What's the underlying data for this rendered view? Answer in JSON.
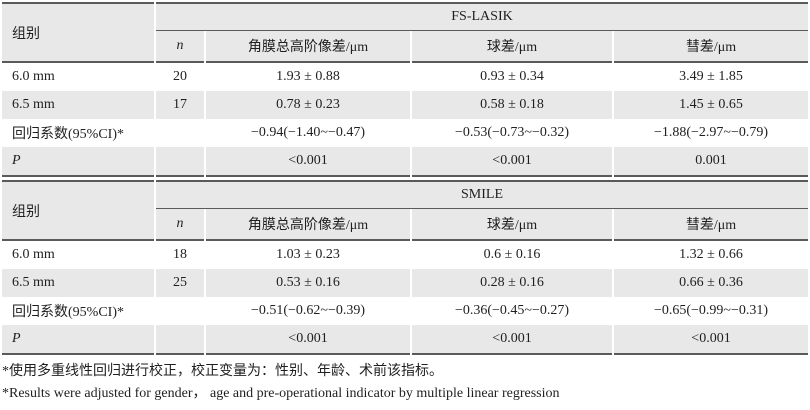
{
  "palette": {
    "stripe_gray": "#e8e8e8",
    "rule_color": "#5a5a5a",
    "text_color": "#1f1f1f",
    "background": "#ffffff"
  },
  "tables": [
    {
      "group_col_header": "组别",
      "span_header": "FS-LASIK",
      "columns": [
        "n",
        "角膜总高阶像差/μm",
        "球差/μm",
        "彗差/μm"
      ],
      "rows": [
        {
          "label": "6.0 mm",
          "n": "20",
          "values": [
            "1.93 ± 0.88",
            "0.93 ± 0.34",
            "3.49 ± 1.85"
          ]
        },
        {
          "label": "6.5 mm",
          "n": "17",
          "values": [
            "0.78 ± 0.23",
            "0.58 ± 0.18",
            "1.45 ± 0.65"
          ]
        },
        {
          "label": "回归系数(95%CI)*",
          "n": "",
          "values": [
            "−0.94(−1.40~−0.47)",
            "−0.53(−0.73~−0.32)",
            "−1.88(−2.97~−0.79)"
          ]
        },
        {
          "label": "P",
          "n": "",
          "values": [
            "<0.001",
            "<0.001",
            "0.001"
          ]
        }
      ]
    },
    {
      "group_col_header": "组别",
      "span_header": "SMILE",
      "columns": [
        "n",
        "角膜总高阶像差/μm",
        "球差/μm",
        "彗差/μm"
      ],
      "rows": [
        {
          "label": "6.0 mm",
          "n": "18",
          "values": [
            "1.03 ± 0.23",
            "0.6 ± 0.16",
            "1.32 ± 0.66"
          ]
        },
        {
          "label": "6.5 mm",
          "n": "25",
          "values": [
            "0.53 ± 0.16",
            "0.28 ± 0.16",
            "0.66 ± 0.36"
          ]
        },
        {
          "label": "回归系数(95%CI)*",
          "n": "",
          "values": [
            "−0.51(−0.62~−0.39)",
            "−0.36(−0.45~−0.27)",
            "−0.65(−0.99~−0.31)"
          ]
        },
        {
          "label": "P",
          "n": "",
          "values": [
            "<0.001",
            "<0.001",
            "<0.001"
          ]
        }
      ]
    }
  ],
  "footnotes": {
    "zh": "*使用多重线性回归进行校正，校正变量为：性别、年龄、术前该指标。",
    "en": "*Results were adjusted for gender， age and pre-operational indicator by multiple linear regression"
  }
}
